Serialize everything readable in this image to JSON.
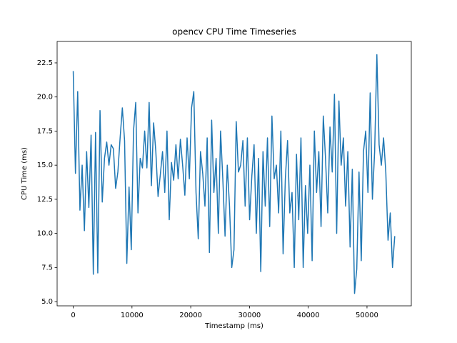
{
  "chart_data": {
    "type": "line",
    "title": "opencv CPU Time Timeseries",
    "xlabel": "Timestamp (ms)",
    "ylabel": "CPU Time (ms)",
    "color": "#1f77b4",
    "x": [
      0,
      380,
      760,
      1140,
      1520,
      1900,
      2280,
      2660,
      3040,
      3420,
      3800,
      4180,
      4560,
      4940,
      5320,
      5700,
      6080,
      6460,
      6840,
      7220,
      7600,
      7980,
      8360,
      8740,
      9120,
      9500,
      9880,
      10260,
      10640,
      11020,
      11400,
      11780,
      12160,
      12540,
      12920,
      13300,
      13680,
      14060,
      14440,
      14820,
      15200,
      15580,
      15960,
      16340,
      16720,
      17100,
      17480,
      17860,
      18240,
      18620,
      19000,
      19380,
      19760,
      20140,
      20520,
      20900,
      21280,
      21660,
      22040,
      22420,
      22800,
      23180,
      23560,
      23940,
      24320,
      24700,
      25080,
      25460,
      25840,
      26220,
      26600,
      26980,
      27360,
      27740,
      28120,
      28500,
      28880,
      29260,
      29640,
      30020,
      30400,
      30780,
      31160,
      31540,
      31920,
      32300,
      32680,
      33060,
      33440,
      33820,
      34200,
      34580,
      34960,
      35340,
      35720,
      36100,
      36480,
      36860,
      37240,
      37620,
      38000,
      38380,
      38760,
      39140,
      39520,
      39900,
      40280,
      40660,
      41040,
      41420,
      41800,
      42180,
      42560,
      42940,
      43320,
      43700,
      44080,
      44460,
      44840,
      45220,
      45600,
      45980,
      46360,
      46740,
      47120,
      47500,
      47880,
      48260,
      48640,
      49020,
      49400,
      49780,
      50160,
      50540,
      50920,
      51300,
      51680,
      52060,
      52440,
      52820,
      53200,
      53580,
      53960,
      54340,
      54720
    ],
    "values": [
      21.9,
      14.4,
      20.4,
      11.7,
      15.0,
      10.2,
      16.0,
      11.9,
      17.2,
      7.0,
      17.4,
      7.1,
      19.0,
      12.3,
      15.5,
      16.7,
      15.0,
      16.5,
      16.2,
      13.3,
      14.5,
      17.0,
      19.2,
      16.8,
      7.8,
      13.4,
      8.8,
      17.5,
      19.6,
      11.5,
      15.5,
      14.8,
      17.5,
      14.8,
      19.6,
      13.5,
      18.1,
      16.0,
      12.7,
      14.3,
      16.0,
      13.0,
      17.5,
      11.0,
      15.2,
      13.9,
      16.5,
      14.0,
      16.9,
      15.0,
      12.8,
      17.0,
      14.0,
      19.2,
      20.4,
      13.0,
      9.6,
      16.0,
      14.4,
      12.0,
      17.0,
      8.6,
      18.3,
      13.0,
      15.5,
      10.0,
      17.5,
      14.0,
      9.8,
      15.0,
      12.0,
      7.5,
      8.8,
      18.2,
      14.5,
      15.0,
      16.8,
      12.0,
      17.0,
      11.0,
      14.2,
      16.5,
      10.0,
      15.5,
      7.2,
      16.0,
      12.0,
      17.0,
      10.5,
      18.6,
      14.0,
      15.0,
      11.5,
      17.5,
      8.5,
      14.0,
      16.8,
      11.5,
      13.0,
      7.5,
      15.8,
      11.0,
      17.0,
      7.5,
      13.5,
      10.0,
      15.0,
      8.0,
      17.5,
      13.0,
      16.0,
      10.5,
      18.6,
      15.5,
      11.5,
      17.8,
      14.5,
      20.2,
      10.0,
      19.7,
      15.0,
      17.0,
      12.0,
      16.0,
      9.0,
      14.7,
      5.6,
      7.4,
      14.5,
      8.0,
      16.0,
      17.5,
      13.0,
      20.3,
      12.5,
      16.0,
      23.1,
      16.5,
      15.0,
      17.0,
      14.5,
      9.5,
      11.5,
      7.5,
      9.8
    ],
    "xlim": [
      -2740,
      57540
    ],
    "xticks": [
      0,
      10000,
      20000,
      30000,
      40000,
      50000
    ],
    "ylim": [
      4.69,
      24.07
    ],
    "yticks": [
      {
        "value": 5,
        "label": "5.0"
      },
      7.5,
      {
        "value": 10,
        "label": "10.0"
      },
      12.5,
      {
        "value": 15,
        "label": "15.0"
      },
      17.5,
      {
        "value": 20,
        "label": "20.0"
      },
      22.5
    ]
  }
}
